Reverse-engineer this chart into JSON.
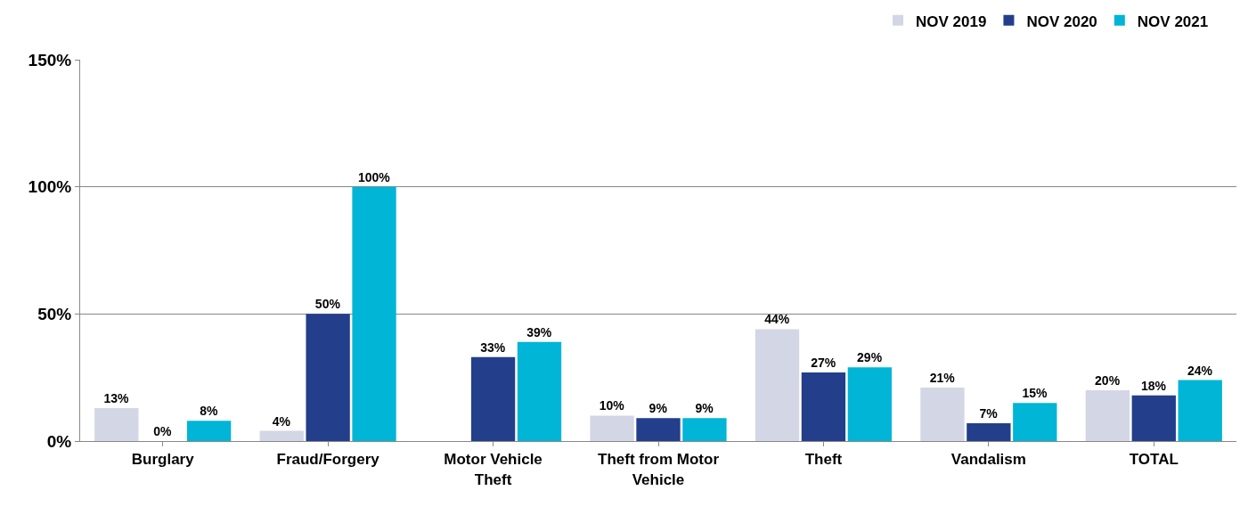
{
  "chart_data": {
    "type": "bar",
    "categories": [
      "Burglary",
      "Fraud/Forgery",
      "Motor Vehicle Theft",
      "Theft from Motor Vehicle",
      "Theft",
      "Vandalism",
      "TOTAL"
    ],
    "series": [
      {
        "name": "NOV 2019",
        "color": "#d3d6e4",
        "values": [
          13,
          4,
          0,
          10,
          44,
          21,
          20
        ],
        "value_labels": [
          "13%",
          "4%",
          null,
          "10%",
          "44%",
          "21%",
          "20%"
        ]
      },
      {
        "name": "NOV 2020",
        "color": "#233e8b",
        "values": [
          0,
          50,
          33,
          9,
          27,
          7,
          18
        ],
        "value_labels": [
          "0%",
          "50%",
          "33%",
          "9%",
          "27%",
          "7%",
          "18%"
        ]
      },
      {
        "name": "NOV 2021",
        "color": "#00b5d6",
        "values": [
          8,
          100,
          39,
          9,
          29,
          15,
          24
        ],
        "value_labels": [
          "8%",
          "100%",
          "39%",
          "9%",
          "29%",
          "15%",
          "24%"
        ]
      }
    ],
    "ylim": [
      0,
      150
    ],
    "yticks": [
      {
        "value": 0,
        "label": "0%"
      },
      {
        "value": 50,
        "label": "50%"
      },
      {
        "value": 100,
        "label": "100%"
      },
      {
        "value": 150,
        "label": "150%"
      }
    ],
    "grid": "y",
    "legend": "top right"
  }
}
